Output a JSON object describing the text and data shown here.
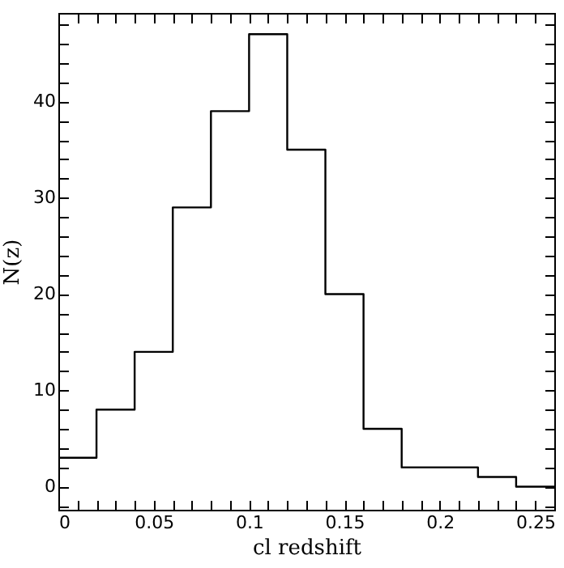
{
  "chart_data": {
    "type": "histogram",
    "xlabel": "cl redshift",
    "ylabel": "N(z)",
    "bins": [
      0,
      0.02,
      0.04,
      0.06,
      0.08,
      0.1,
      0.12,
      0.14,
      0.16,
      0.18,
      0.2,
      0.22,
      0.24,
      0.26
    ],
    "values": [
      3,
      8,
      14,
      29,
      39,
      47,
      35,
      20,
      6,
      2,
      2,
      1,
      0
    ],
    "color": "#000000",
    "xlim": [
      0,
      0.26
    ],
    "ylim": [
      -2.4,
      49.2
    ],
    "xticks": [
      0,
      {
        "value": 0.01,
        "label": null
      },
      {
        "value": 0.02,
        "label": null
      },
      {
        "value": 0.03,
        "label": null
      },
      {
        "value": 0.04,
        "label": null
      },
      0.05,
      {
        "value": 0.06,
        "label": null
      },
      {
        "value": 0.07,
        "label": null
      },
      {
        "value": 0.08,
        "label": null
      },
      {
        "value": 0.09,
        "label": null
      },
      0.1,
      {
        "value": 0.11,
        "label": null
      },
      {
        "value": 0.12,
        "label": null
      },
      {
        "value": 0.13,
        "label": null
      },
      {
        "value": 0.14,
        "label": null
      },
      0.15,
      {
        "value": 0.16,
        "label": null
      },
      {
        "value": 0.17,
        "label": null
      },
      {
        "value": 0.18,
        "label": null
      },
      {
        "value": 0.19,
        "label": null
      },
      0.2,
      {
        "value": 0.21,
        "label": null
      },
      {
        "value": 0.22,
        "label": null
      },
      {
        "value": 0.23,
        "label": null
      },
      {
        "value": 0.24,
        "label": null
      },
      0.25
    ],
    "yticks": [
      {
        "value": -2,
        "label": null
      },
      0,
      {
        "value": 2,
        "label": null
      },
      {
        "value": 4,
        "label": null
      },
      {
        "value": 6,
        "label": null
      },
      {
        "value": 8,
        "label": null
      },
      10,
      {
        "value": 12,
        "label": null
      },
      {
        "value": 14,
        "label": null
      },
      {
        "value": 16,
        "label": null
      },
      {
        "value": 18,
        "label": null
      },
      20,
      {
        "value": 22,
        "label": null
      },
      {
        "value": 24,
        "label": null
      },
      {
        "value": 26,
        "label": null
      },
      {
        "value": 28,
        "label": null
      },
      30,
      {
        "value": 32,
        "label": null
      },
      {
        "value": 34,
        "label": null
      },
      {
        "value": 36,
        "label": null
      },
      {
        "value": 38,
        "label": null
      },
      40,
      {
        "value": 42,
        "label": null
      },
      {
        "value": 44,
        "label": null
      },
      {
        "value": 46,
        "label": null
      },
      {
        "value": 48,
        "label": null
      }
    ]
  }
}
